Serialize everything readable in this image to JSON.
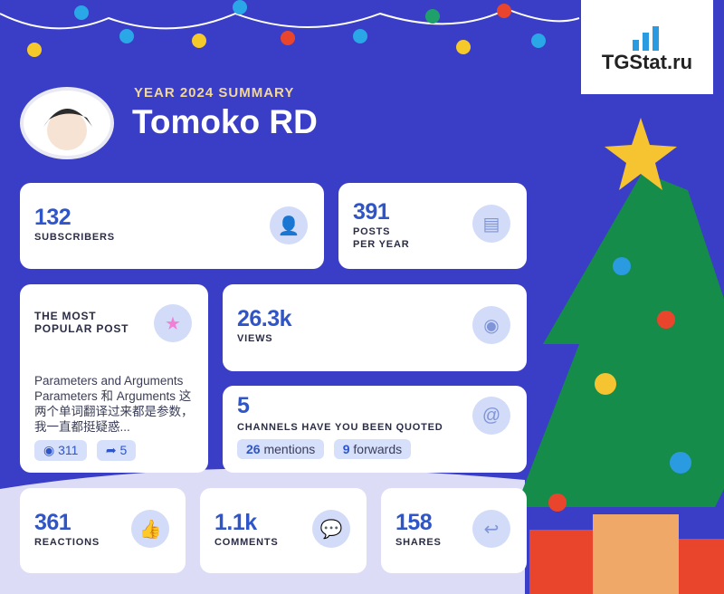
{
  "header": {
    "subtitle": "YEAR 2024 SUMMARY",
    "channel_name": "Tomoko RD"
  },
  "logo": {
    "text": "TGStat.ru"
  },
  "subscribers": {
    "value": "132",
    "label": "SUBSCRIBERS",
    "icon": "user-icon"
  },
  "posts": {
    "value": "391",
    "label_line1": "POSTS",
    "label_line2": "PER YEAR",
    "icon": "document-icon"
  },
  "popular_post": {
    "title_line1": "THE MOST",
    "title_line2": "POPULAR POST",
    "icon": "star-icon",
    "text": "Parameters and Arguments Parameters 和 Arguments 这两个单词翻译过来都是参数，我一直都挺疑惑...",
    "views": "311",
    "shares": "5"
  },
  "views": {
    "value": "26.3k",
    "label": "VIEWS",
    "icon": "eye-icon"
  },
  "quoted": {
    "value": "5",
    "label": "CHANNELS HAVE YOU BEEN QUOTED",
    "mentions_num": "26",
    "mentions_label": "mentions",
    "forwards_num": "9",
    "forwards_label": "forwards",
    "icon": "at-icon"
  },
  "reactions": {
    "value": "361",
    "label": "REACTIONS",
    "icon": "thumbs-up-icon"
  },
  "comments": {
    "value": "1.1k",
    "label": "COMMENTS",
    "icon": "chat-icon"
  },
  "shares": {
    "value": "158",
    "label": "SHARES",
    "icon": "share-icon"
  },
  "colors": {
    "background": "#3a3ec6",
    "accent": "#2f55c8",
    "gold": "#f2d79a"
  }
}
